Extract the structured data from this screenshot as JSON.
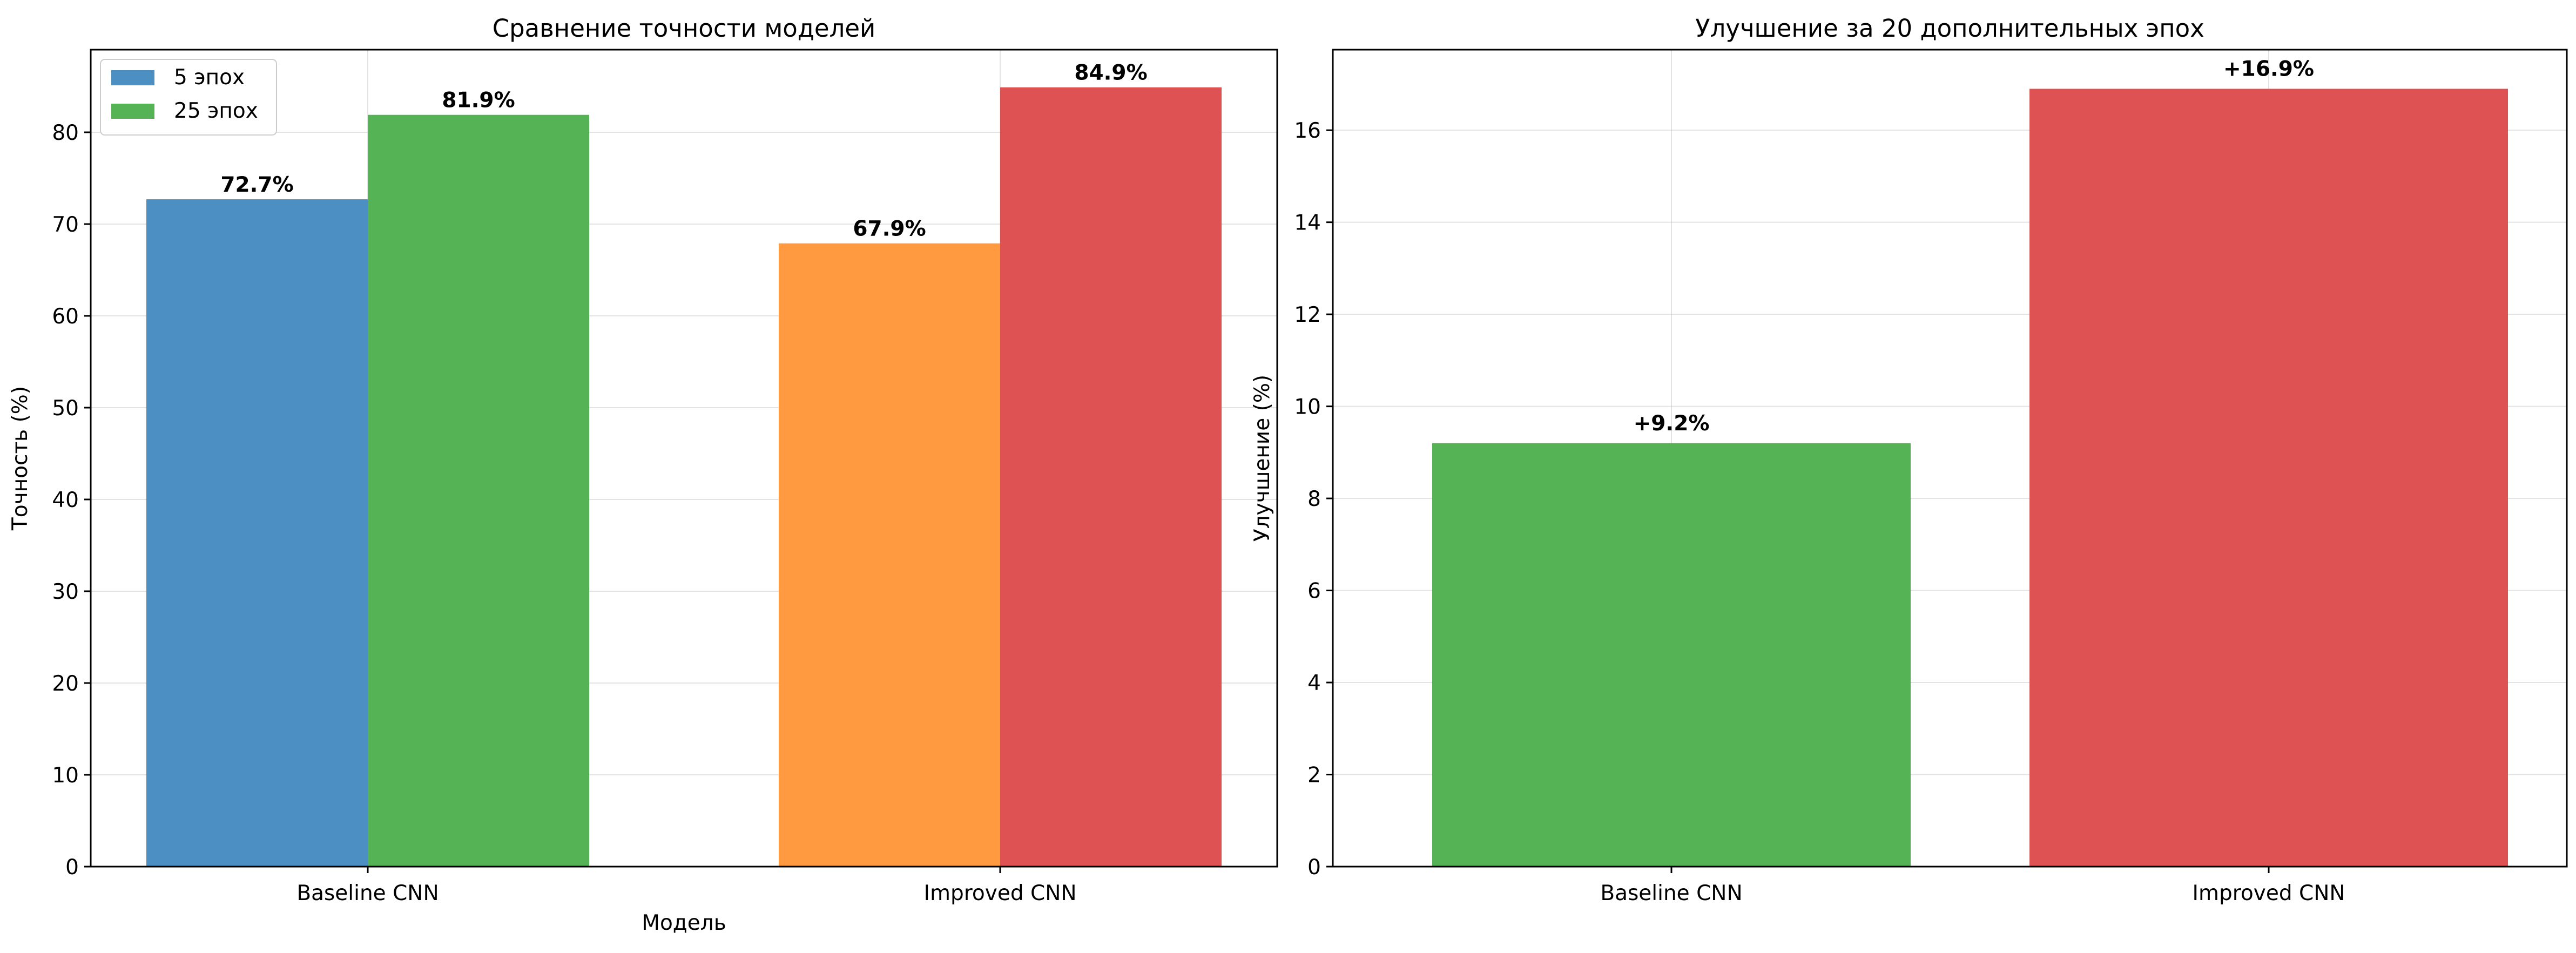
{
  "chart_data": [
    {
      "type": "bar",
      "title": "Сравнение точности моделей",
      "xlabel": "Модель",
      "ylabel": "Точность (%)",
      "categories": [
        "Baseline CNN",
        "Improved CNN"
      ],
      "series": [
        {
          "name": "5 эпох",
          "values": [
            72.7,
            67.9
          ],
          "labels": [
            "72.7%",
            "67.9%"
          ],
          "colors": [
            "#4b8fc3",
            "#ff9a40"
          ]
        },
        {
          "name": "25 эпох",
          "values": [
            81.9,
            84.9
          ],
          "labels": [
            "81.9%",
            "84.9%"
          ],
          "colors": [
            "#55b255",
            "#df5254"
          ]
        }
      ],
      "legend": {
        "placement": "top-left",
        "colors": [
          "#4b8fc3",
          "#55b255"
        ]
      },
      "ylim": [
        0,
        89
      ],
      "yticks": [
        0,
        10,
        20,
        30,
        40,
        50,
        60,
        70,
        80
      ],
      "grid": true
    },
    {
      "type": "bar",
      "title": "Улучшение за 20 дополнительных эпох",
      "xlabel": "",
      "ylabel": "Улучшение (%)",
      "categories": [
        "Baseline CNN",
        "Improved CNN"
      ],
      "values": [
        9.2,
        16.9
      ],
      "labels": [
        "+9.2%",
        "+16.9%"
      ],
      "colors": [
        "#55b255",
        "#df5254"
      ],
      "ylim": [
        0,
        17.75
      ],
      "yticks": [
        0,
        2,
        4,
        6,
        8,
        10,
        12,
        14,
        16
      ],
      "grid": true
    }
  ]
}
